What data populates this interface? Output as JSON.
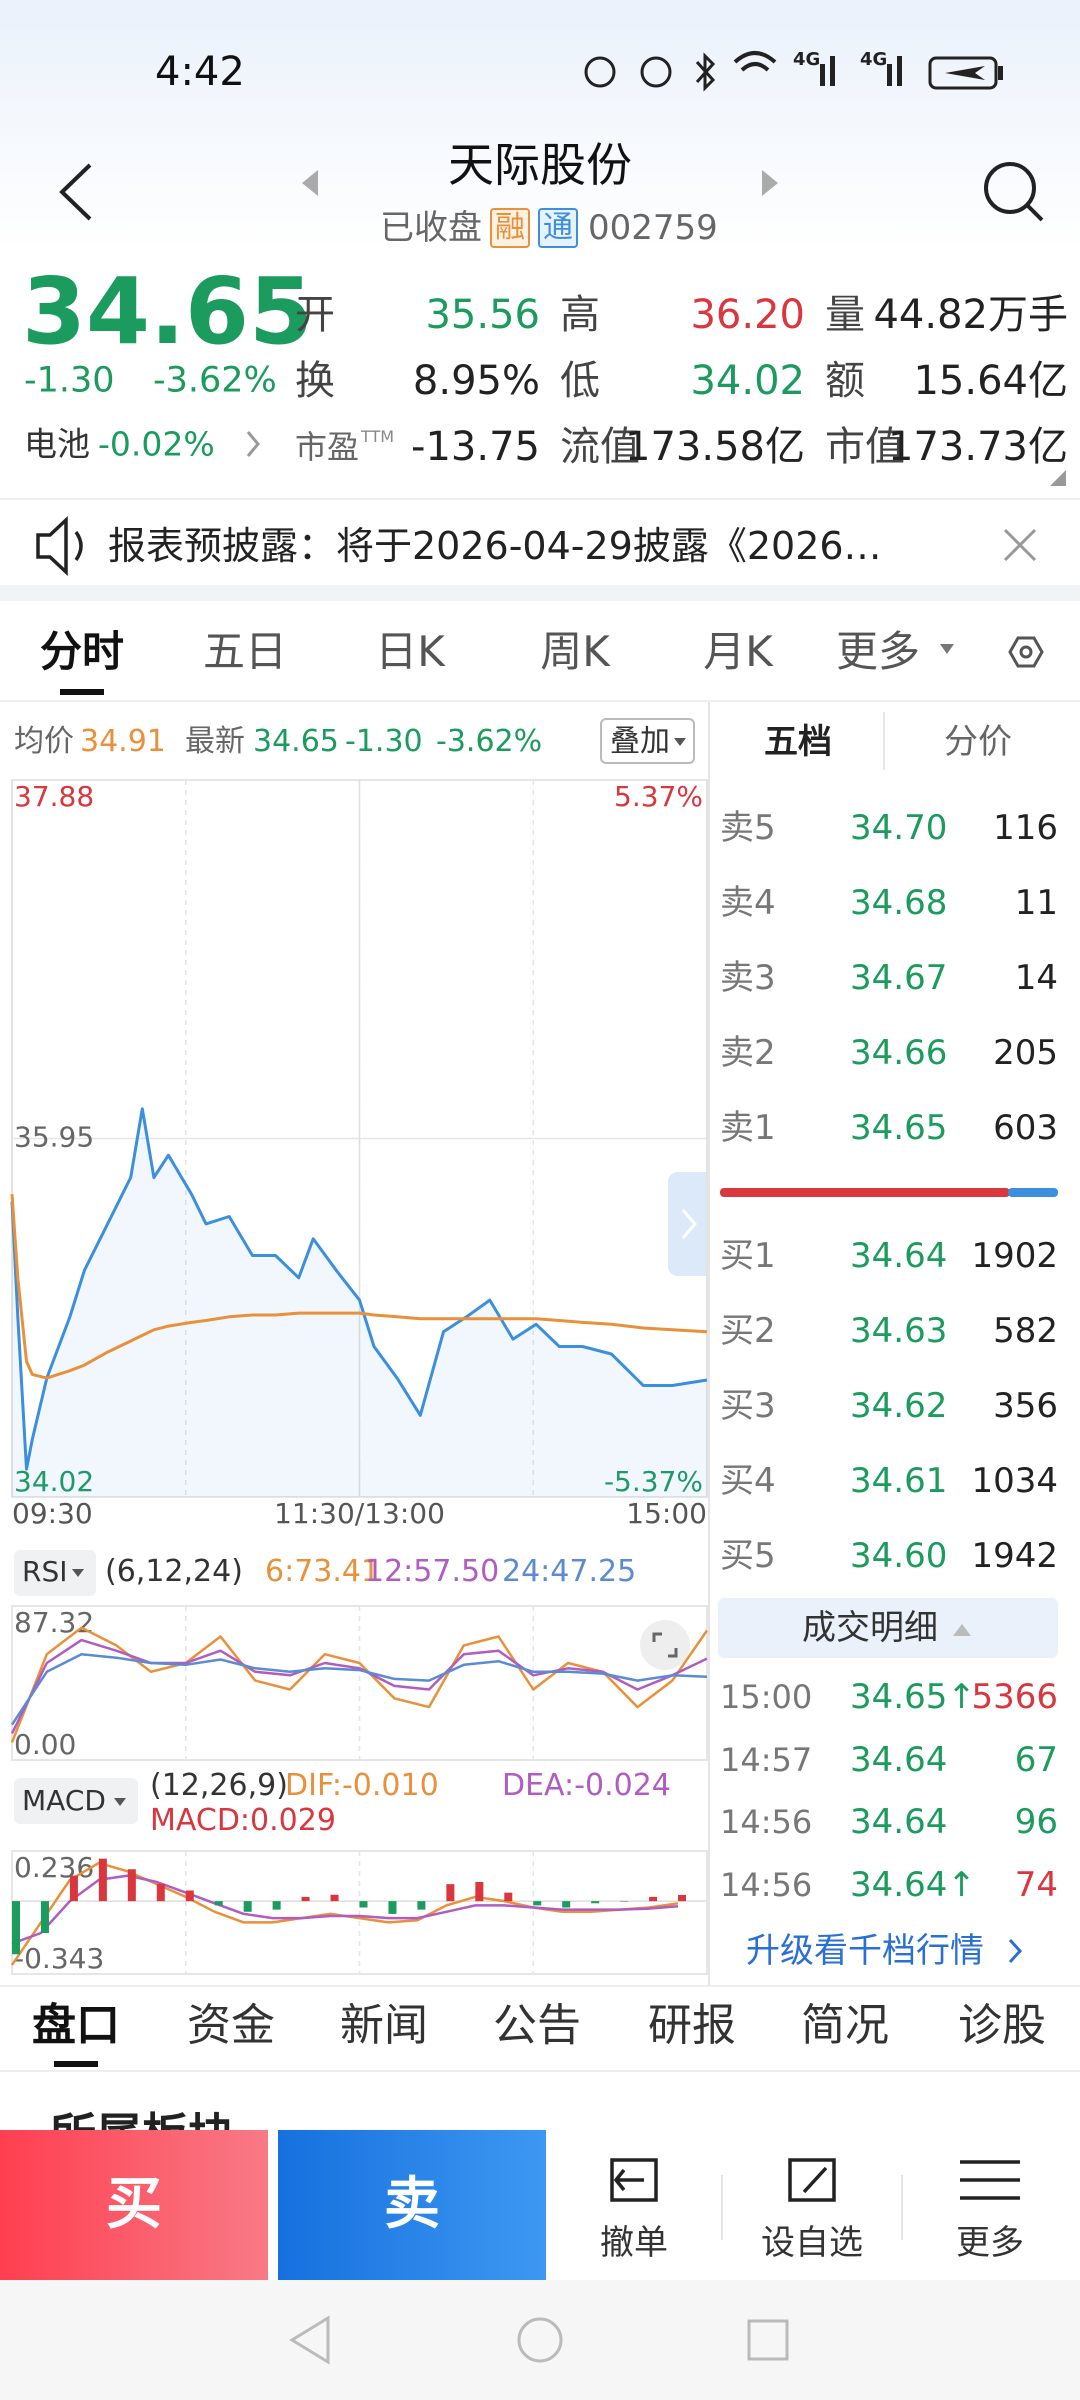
{
  "status_bar": {
    "time": "4:42",
    "network": [
      "4G",
      "4G"
    ]
  },
  "header": {
    "title": "天际股份",
    "status": "已收盘",
    "tags": [
      "融",
      "通"
    ],
    "code": "002759"
  },
  "colors": {
    "up": "#d9363e",
    "down": "#1c9b5e"
  },
  "quote": {
    "price": "34.65",
    "change": "-1.30",
    "change_pct": "-3.62%",
    "sector": "电池",
    "sector_pct": "-0.02%",
    "stats": [
      {
        "label": "开",
        "value": "35.56",
        "color": "#1c9b5e"
      },
      {
        "label": "高",
        "value": "36.20",
        "color": "#d9363e"
      },
      {
        "label": "量",
        "value": "44.82万手",
        "color": "#222222"
      },
      {
        "label": "换",
        "value": "8.95%",
        "color": "#222222"
      },
      {
        "label": "低",
        "value": "34.02",
        "color": "#1c9b5e"
      },
      {
        "label": "额",
        "value": "15.64亿",
        "color": "#222222"
      },
      {
        "label": "市盈",
        "sup": "TTM",
        "value": "-13.75",
        "color": "#222222"
      },
      {
        "label": "流值",
        "value": "173.58亿",
        "color": "#222222"
      },
      {
        "label": "市值",
        "value": "173.73亿",
        "color": "#222222"
      }
    ]
  },
  "notice": {
    "text": "报表预披露：将于2026-04-29披露《2026…"
  },
  "tabs": [
    "分时",
    "五日",
    "日K",
    "周K",
    "月K",
    "更多"
  ],
  "chart_info": {
    "avg_label": "均价",
    "avg": "34.91",
    "latest_label": "最新",
    "latest": "34.65",
    "change": "-1.30",
    "change_pct": "-3.62%",
    "overlay": "叠加"
  },
  "chart_data": [
    {
      "type": "line",
      "x": [
        0,
        2,
        5,
        7,
        12,
        20,
        25,
        33,
        41,
        45,
        49,
        54,
        62,
        67,
        75,
        83,
        91,
        99,
        104,
        112,
        120,
        125,
        133,
        141,
        149,
        157,
        165,
        173,
        181,
        189,
        197,
        207,
        218,
        228,
        240
      ],
      "xlim": [
        0,
        240
      ],
      "xticks": [
        {
          "value": 0,
          "label": "09:30"
        },
        {
          "value": 120,
          "label": "11:30/13:00"
        },
        {
          "value": 240,
          "label": "15:00"
        }
      ],
      "ylim": [
        34.02,
        37.88
      ],
      "yticks": [
        34.02,
        35.95,
        37.88
      ],
      "y2lim": [
        -5.37,
        5.37
      ],
      "y2ticks": [
        {
          "value": -5.37,
          "label": "-5.37%"
        },
        {
          "value": 5.37,
          "label": "5.37%"
        }
      ],
      "series": [
        {
          "name": "最新",
          "color": "#3b8fdc",
          "area": true,
          "values": [
            35.61,
            34.99,
            34.17,
            34.33,
            34.66,
            34.99,
            35.24,
            35.49,
            35.74,
            36.11,
            35.74,
            35.86,
            35.65,
            35.49,
            35.53,
            35.32,
            35.32,
            35.2,
            35.41,
            35.24,
            35.08,
            34.83,
            34.66,
            34.46,
            34.91,
            34.99,
            35.08,
            34.87,
            34.95,
            34.83,
            34.83,
            34.79,
            34.62,
            34.62,
            34.65
          ]
        },
        {
          "name": "均价",
          "color": "#e8903a",
          "values": [
            35.65,
            35.2,
            34.75,
            34.68,
            34.66,
            34.7,
            34.73,
            34.8,
            34.86,
            34.89,
            34.92,
            34.94,
            34.96,
            34.97,
            34.99,
            35.0,
            35.0,
            35.01,
            35.01,
            35.01,
            35.01,
            35.0,
            34.99,
            34.98,
            34.98,
            34.98,
            34.98,
            34.98,
            34.98,
            34.97,
            34.96,
            34.95,
            34.93,
            34.92,
            34.91
          ]
        }
      ]
    },
    {
      "type": "line",
      "title": "RSI",
      "subtitle": "(6,12,24)",
      "x": [
        0,
        12,
        24,
        36,
        48,
        60,
        72,
        84,
        96,
        108,
        120,
        132,
        144,
        156,
        168,
        180,
        192,
        204,
        216,
        228,
        240
      ],
      "xlim": [
        0,
        240
      ],
      "ylim": [
        0,
        87.32
      ],
      "yticks": [
        {
          "value": 0,
          "label": "0.00"
        },
        87.32
      ],
      "series": [
        {
          "name": "6:73.41",
          "color": "#e8903a",
          "values": [
            10,
            60,
            75,
            65,
            50,
            55,
            70,
            45,
            40,
            60,
            55,
            35,
            30,
            65,
            70,
            40,
            55,
            50,
            30,
            45,
            73.41
          ]
        },
        {
          "name": "12:57.50",
          "color": "#b05cc0",
          "values": [
            15,
            55,
            68,
            62,
            55,
            55,
            62,
            50,
            48,
            55,
            52,
            42,
            40,
            60,
            62,
            48,
            52,
            50,
            40,
            48,
            57.5
          ]
        },
        {
          "name": "24:47.25",
          "color": "#5b8bd0",
          "values": [
            20,
            50,
            60,
            58,
            55,
            54,
            57,
            52,
            50,
            52,
            51,
            46,
            45,
            54,
            56,
            50,
            50,
            49,
            45,
            48,
            47.25
          ]
        }
      ]
    },
    {
      "type": "macd",
      "title": "MACD",
      "subtitle": "(12,26,9)",
      "x": [
        0,
        10,
        20,
        30,
        40,
        50,
        60,
        70,
        80,
        90,
        100,
        110,
        120,
        130,
        140,
        150,
        160,
        170,
        180,
        190,
        200,
        210,
        220,
        230
      ],
      "xlim": [
        0,
        240
      ],
      "ylim": [
        -0.343,
        0.236
      ],
      "yticks": [
        -0.343,
        0.236
      ],
      "series": [
        {
          "name": "DIF:-0.010",
          "color": "#e8903a",
          "values": [
            -0.3,
            -0.1,
            0.1,
            0.18,
            0.14,
            0.08,
            0.02,
            -0.05,
            -0.1,
            -0.1,
            -0.08,
            -0.06,
            -0.08,
            -0.1,
            -0.09,
            -0.02,
            0.02,
            0.0,
            -0.03,
            -0.05,
            -0.05,
            -0.04,
            -0.03,
            -0.01
          ]
        },
        {
          "name": "DEA:-0.024",
          "color": "#b05cc0",
          "values": [
            -0.2,
            -0.15,
            0.0,
            0.1,
            0.12,
            0.09,
            0.04,
            -0.01,
            -0.06,
            -0.08,
            -0.08,
            -0.07,
            -0.07,
            -0.08,
            -0.08,
            -0.05,
            -0.02,
            -0.02,
            -0.03,
            -0.04,
            -0.04,
            -0.04,
            -0.035,
            -0.024
          ]
        },
        {
          "name": "MACD:0.029",
          "type": "bar",
          "color": "#d9363e",
          "negative_color": "#1c9b5e",
          "values": [
            -0.25,
            -0.15,
            0.12,
            0.2,
            0.15,
            0.08,
            0.05,
            -0.02,
            -0.05,
            -0.04,
            0.02,
            0.03,
            -0.03,
            -0.06,
            -0.04,
            0.08,
            0.09,
            0.04,
            -0.02,
            -0.03,
            -0.01,
            0.0,
            0.02,
            0.029
          ]
        }
      ]
    }
  ],
  "order_book": {
    "tabs": [
      "五档",
      "分价"
    ],
    "asks": [
      [
        "卖5",
        "34.70",
        "116"
      ],
      [
        "卖4",
        "34.68",
        "11"
      ],
      [
        "卖3",
        "34.67",
        "14"
      ],
      [
        "卖2",
        "34.66",
        "205"
      ],
      [
        "卖1",
        "34.65",
        "603"
      ]
    ],
    "bids": [
      [
        "买1",
        "34.64",
        "1902"
      ],
      [
        "买2",
        "34.63",
        "582"
      ],
      [
        "买3",
        "34.62",
        "356"
      ],
      [
        "买4",
        "34.61",
        "1034"
      ],
      [
        "买5",
        "34.60",
        "1942"
      ]
    ],
    "trades_title": "成交明细",
    "trades": [
      {
        "time": "15:00",
        "price": "34.65↑",
        "volume": "5366",
        "color": "#d9363e"
      },
      {
        "time": "14:57",
        "price": "34.64",
        "volume": "67",
        "color": "#1c9b5e"
      },
      {
        "time": "14:56",
        "price": "34.64",
        "volume": "96",
        "color": "#1c9b5e"
      },
      {
        "time": "14:56",
        "price": "34.64↑",
        "volume": "74",
        "color": "#d9363e"
      }
    ],
    "upgrade": "升级看千档行情"
  },
  "bottom_tabs": [
    "盘口",
    "资金",
    "新闻",
    "公告",
    "研报",
    "简况",
    "诊股"
  ],
  "section_title": "所属板块",
  "actions": {
    "buy": "买",
    "sell": "卖",
    "items": [
      "撤单",
      "设自选",
      "更多"
    ]
  }
}
